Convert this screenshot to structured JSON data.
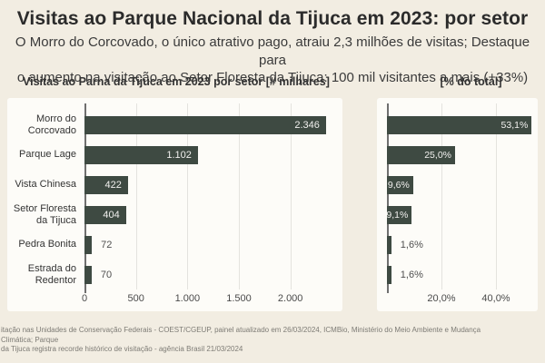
{
  "header": {
    "title": "Visitas ao Parque Nacional da Tijuca em 2023: por setor",
    "subtitle_line1": "O Morro do Corcovado, o único atrativo pago, atraiu 2,3 milhões de visitas; Destaque para",
    "subtitle_line2": "o aumento na visitação ao Setor Floresta da Tijuca: 100 mil visitantes a mais (+33%)"
  },
  "colors": {
    "background": "#f2ede2",
    "card": "#fdfcf8",
    "bar": "#3e4a42",
    "value_label_inside": "#f1f0ee",
    "value_label_outside": "#4f4f4f"
  },
  "chart_data": [
    {
      "type": "bar",
      "orientation": "horizontal",
      "title": "Visitas ao Parna da Tijuca em 2023 por setor [# milhares]",
      "categories": [
        "Morro do\nCorcovado",
        "Parque Lage",
        "Vista Chinesa",
        "Setor Floresta\nda Tijuca",
        "Pedra Bonita",
        "Estrada do\nRedentor"
      ],
      "values": [
        2346,
        1102,
        422,
        404,
        72,
        70
      ],
      "value_labels": [
        "2.346",
        "1.102",
        "422",
        "404",
        "72",
        "70"
      ],
      "label_inside": [
        true,
        true,
        true,
        true,
        false,
        false
      ],
      "xlabel": "",
      "ylabel": "",
      "xlim": [
        0,
        2400
      ],
      "grid": true,
      "legend": false,
      "ticks": [
        {
          "value": 0,
          "label": "0"
        },
        {
          "value": 500,
          "label": "500"
        },
        {
          "value": 1000,
          "label": "1.000"
        },
        {
          "value": 1500,
          "label": "1.500"
        },
        {
          "value": 2000,
          "label": "2.000"
        }
      ]
    },
    {
      "type": "bar",
      "orientation": "horizontal",
      "title": "[% do total]",
      "categories": [
        "Morro do\nCorcovado",
        "Parque Lage",
        "Vista Chinesa",
        "Setor Floresta\nda Tijuca",
        "Pedra Bonita",
        "Estrada do\nRedentor"
      ],
      "values": [
        53.1,
        25.0,
        9.6,
        9.1,
        1.6,
        1.6
      ],
      "value_labels": [
        "53,1%",
        "25,0%",
        "9,6%",
        "9,1%",
        "1,6%",
        "1,6%"
      ],
      "label_inside": [
        true,
        true,
        true,
        true,
        false,
        false
      ],
      "xlabel": "",
      "ylabel": "",
      "xlim": [
        0,
        55
      ],
      "grid": true,
      "legend": false,
      "ticks": [
        {
          "value": 20,
          "label": "20,0%"
        },
        {
          "value": 40,
          "label": "40,0%"
        }
      ]
    }
  ],
  "footer": {
    "line1": "itação nas Unidades de Conservação Federais - COEST/CGEUP, painel atualizado em 26/03/2024, ICMBio, Ministério do Meio Ambiente e Mudança Climática; Parque",
    "line2": "da Tijuca registra recorde histórico de visitação - agência Brasil 21/03/2024"
  }
}
